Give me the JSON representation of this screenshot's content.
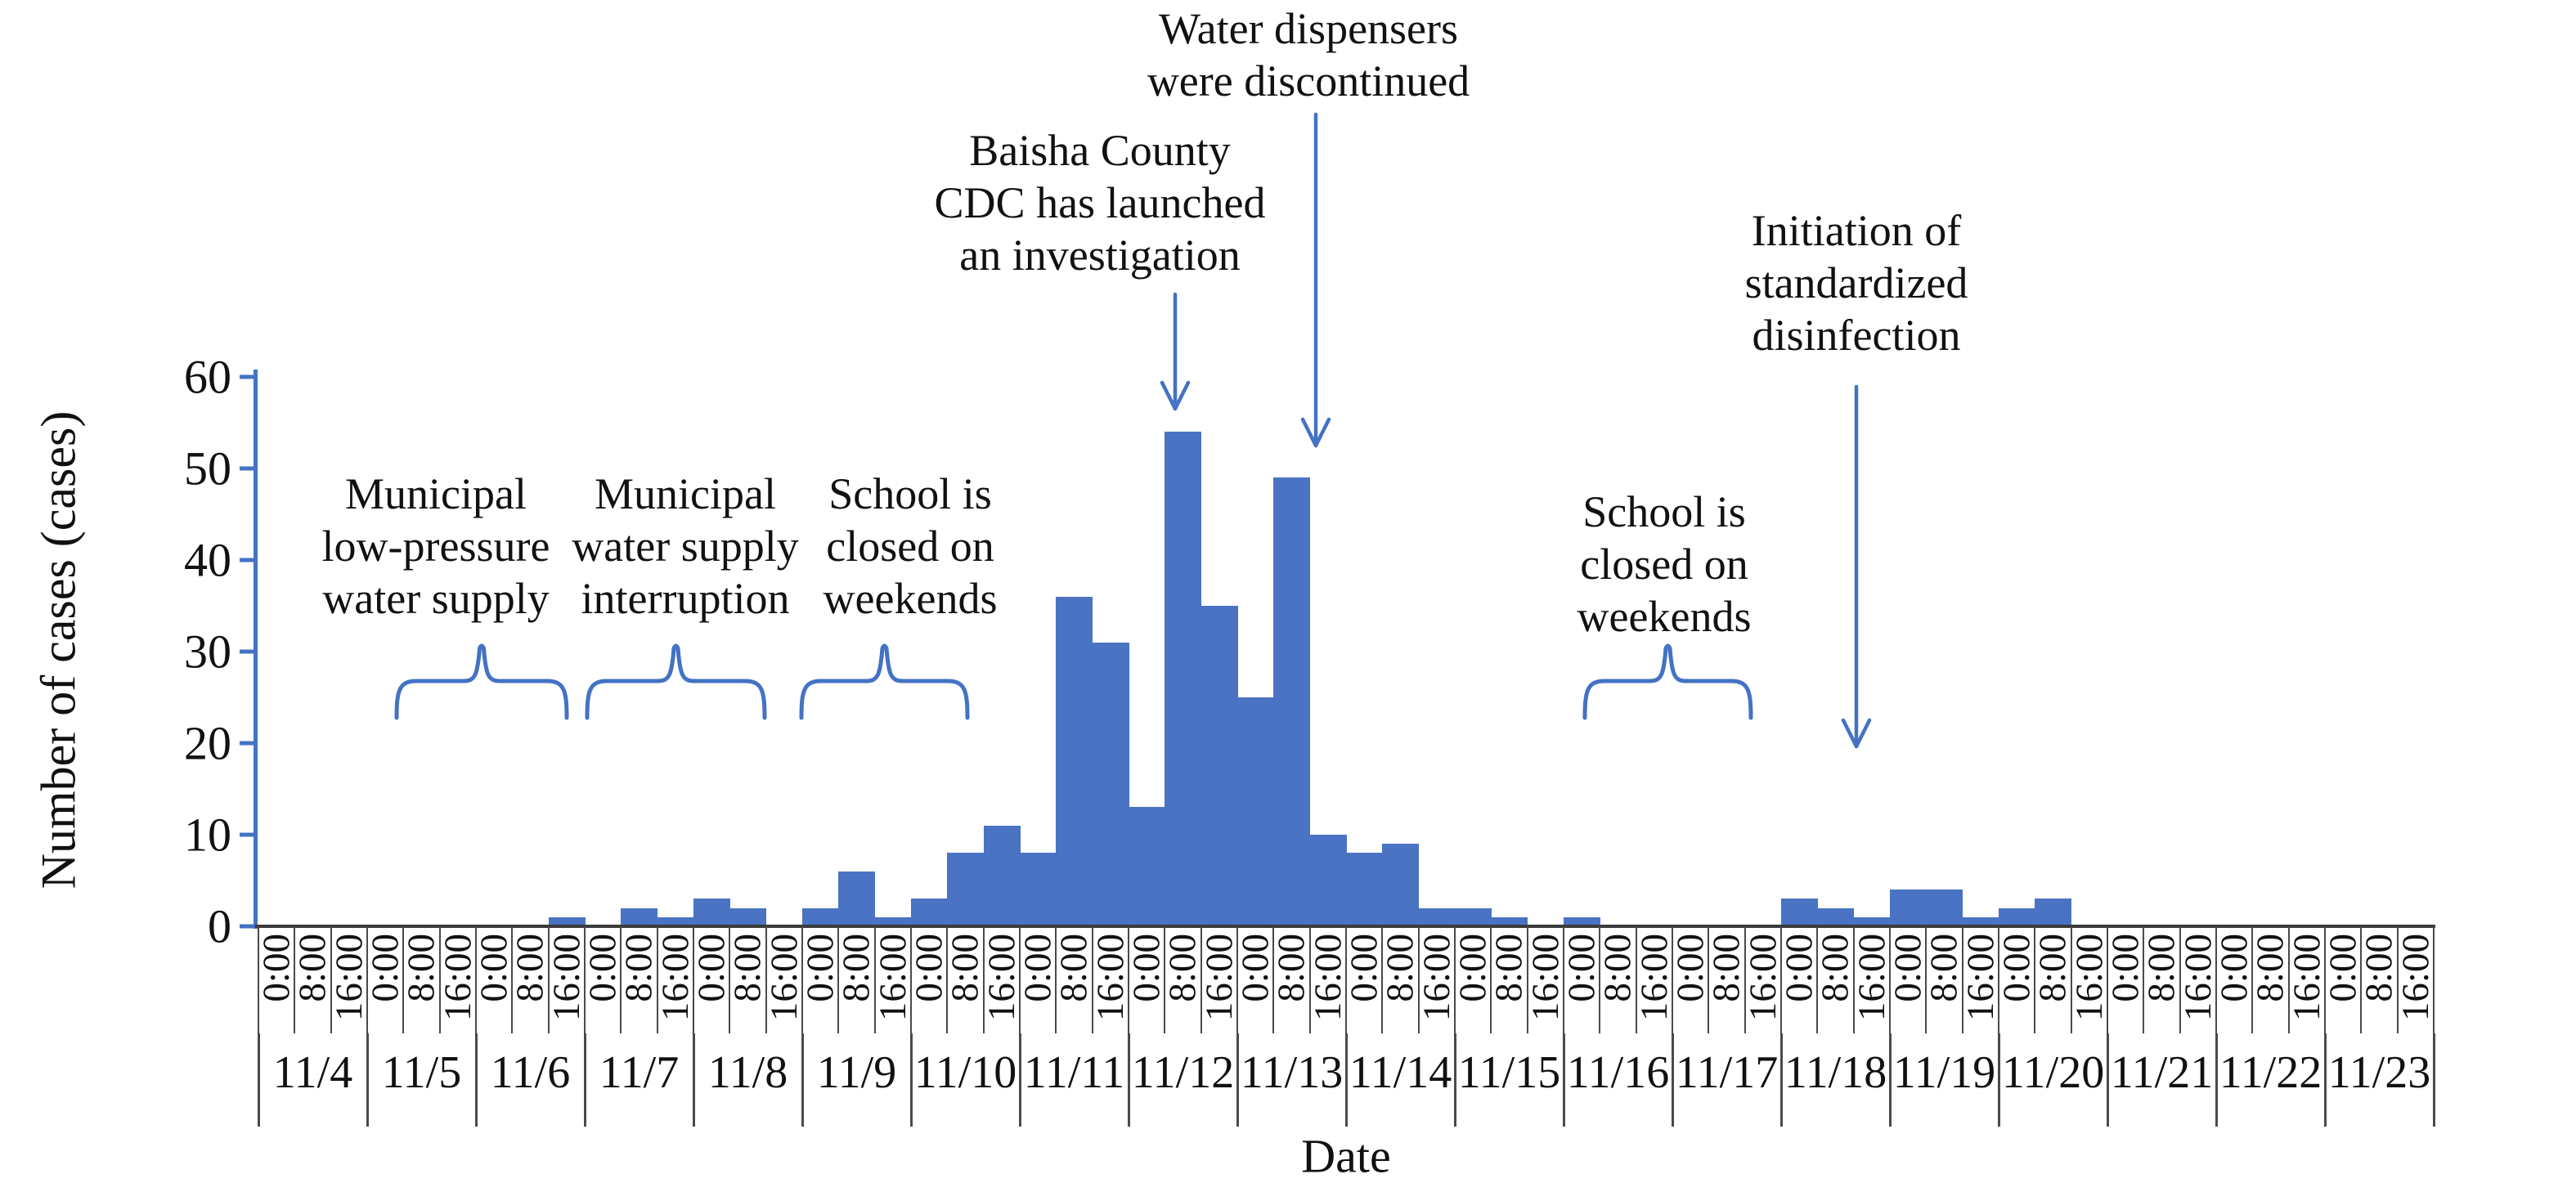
{
  "figure": {
    "background": "#ffffff",
    "accent_blue": "#4472c4",
    "bar_color": "#4a73c4",
    "axis_dark": "#3a3a3a",
    "text_color": "#111111"
  },
  "chart_data": {
    "type": "bar",
    "title": "",
    "xlabel": "Date",
    "ylabel": "Number of cases (cases)",
    "ylim": [
      0,
      60
    ],
    "yticks": [
      0,
      10,
      20,
      30,
      40,
      50,
      60
    ],
    "grid": false,
    "legend": null,
    "x_unit": "8-hour interval",
    "time_labels": [
      "0:00",
      "8:00",
      "16:00"
    ],
    "days": [
      {
        "date": "11/4",
        "values": [
          0,
          0,
          0
        ]
      },
      {
        "date": "11/5",
        "values": [
          0,
          0,
          0
        ]
      },
      {
        "date": "11/6",
        "values": [
          0,
          0,
          1
        ]
      },
      {
        "date": "11/7",
        "values": [
          0,
          2,
          1
        ]
      },
      {
        "date": "11/8",
        "values": [
          3,
          2,
          0
        ]
      },
      {
        "date": "11/9",
        "values": [
          2,
          6,
          1
        ]
      },
      {
        "date": "11/10",
        "values": [
          3,
          8,
          11
        ]
      },
      {
        "date": "11/11",
        "values": [
          8,
          36,
          31
        ]
      },
      {
        "date": "11/12",
        "values": [
          13,
          54,
          35
        ]
      },
      {
        "date": "11/13",
        "values": [
          25,
          49,
          10
        ]
      },
      {
        "date": "11/14",
        "values": [
          8,
          9,
          2
        ]
      },
      {
        "date": "11/15",
        "values": [
          2,
          1,
          0
        ]
      },
      {
        "date": "11/16",
        "values": [
          1,
          0,
          0
        ]
      },
      {
        "date": "11/17",
        "values": [
          0,
          0,
          0
        ]
      },
      {
        "date": "11/18",
        "values": [
          3,
          2,
          1
        ]
      },
      {
        "date": "11/19",
        "values": [
          4,
          4,
          1
        ]
      },
      {
        "date": "11/20",
        "values": [
          2,
          3,
          0
        ]
      },
      {
        "date": "11/21",
        "values": [
          0,
          0,
          0
        ]
      },
      {
        "date": "11/22",
        "values": [
          0,
          0,
          0
        ]
      },
      {
        "date": "11/23",
        "values": [
          0,
          0,
          0
        ]
      }
    ],
    "annotations": [
      {
        "id": "municipal-low-pressure-water-supply",
        "lines": [
          "Municipal",
          "low-pressure",
          "water supply"
        ],
        "marker": "brace",
        "covers_dates": "11/5-11/6",
        "text_cx": 533,
        "text_cy": 668,
        "brace": {
          "x0": 485,
          "x1": 693,
          "y_top": 787,
          "y_bottom": 878
        }
      },
      {
        "id": "municipal-water-supply-interruption",
        "lines": [
          "Municipal",
          "water supply",
          "interruption"
        ],
        "marker": "brace",
        "covers_dates": "11/7-11/8",
        "text_cx": 838,
        "text_cy": 668,
        "brace": {
          "x0": 718,
          "x1": 935,
          "y_top": 787,
          "y_bottom": 878
        }
      },
      {
        "id": "school-closed-weekends-1",
        "lines": [
          "School is",
          "closed on",
          "weekends"
        ],
        "marker": "brace",
        "covers_dates": "11/9-11/10",
        "text_cx": 1113,
        "text_cy": 668,
        "brace": {
          "x0": 980,
          "x1": 1183,
          "y_top": 787,
          "y_bottom": 878
        }
      },
      {
        "id": "baisha-county-cdc-investigation",
        "lines": [
          "Baisha County",
          "CDC has launched",
          "an investigation"
        ],
        "marker": "arrow",
        "points_to": "11/12 8:00 bar (54 cases)",
        "text_cx": 1345,
        "text_cy": 248,
        "arrow": {
          "x": 1437,
          "y0": 360,
          "y1": 500
        }
      },
      {
        "id": "water-dispensers-discontinued",
        "lines": [
          "Water dispensers",
          "were discontinued"
        ],
        "marker": "arrow",
        "points_to": "11/13 8:00 bar (49 cases)",
        "text_cx": 1600,
        "text_cy": 67,
        "arrow": {
          "x": 1609,
          "y0": 140,
          "y1": 545
        }
      },
      {
        "id": "school-closed-weekends-2",
        "lines": [
          "School is",
          "closed on",
          "weekends"
        ],
        "marker": "brace",
        "covers_dates": "11/16-11/17",
        "text_cx": 2035,
        "text_cy": 690,
        "brace": {
          "x0": 1938,
          "x1": 2141,
          "y_top": 787,
          "y_bottom": 878
        }
      },
      {
        "id": "initiation-standardized-disinfection",
        "lines": [
          "Initiation of",
          "standardized",
          "disinfection"
        ],
        "marker": "arrow",
        "points_to": "11/18",
        "text_cx": 2270,
        "text_cy": 346,
        "arrow": {
          "x": 2270,
          "y0": 473,
          "y1": 913
        }
      }
    ]
  }
}
